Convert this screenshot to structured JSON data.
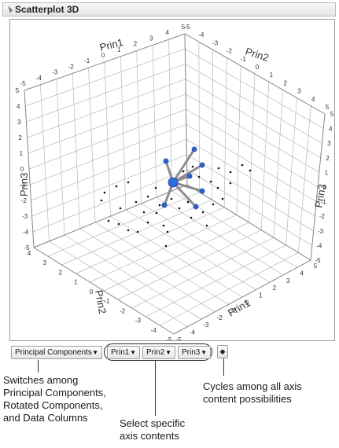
{
  "panel": {
    "title": "Scatterplot 3D"
  },
  "plot": {
    "axis_labels": {
      "prin1_top": "Prin1",
      "prin2_top": "Prin2",
      "prin3_left": "Prin3",
      "prin3_right": "Prin3",
      "prin2_bottom": "Prin2",
      "prin1_bottom": "Prin1"
    },
    "ticks": {
      "top_left_edge": [
        "-5",
        "-4",
        "-3",
        "-2",
        "-1",
        "0",
        "1",
        "2",
        "3",
        "4",
        "5"
      ],
      "top_right_edge": [
        "-5",
        "-4",
        "-3",
        "-2",
        "-1",
        "0",
        "1",
        "2",
        "3",
        "4",
        "5"
      ],
      "left_edge": [
        "5",
        "4",
        "3",
        "2",
        "1",
        "0",
        "-1",
        "-2",
        "-3",
        "-4",
        "-5"
      ],
      "right_edge": [
        "5",
        "4",
        "3",
        "2",
        "1",
        "0",
        "-1",
        "-2",
        "-3",
        "-4",
        "-5"
      ],
      "bottom_right_edge": [
        "-5",
        "-4",
        "-3",
        "-2",
        "-1",
        "0",
        "1",
        "2",
        "3",
        "4",
        "5"
      ],
      "bottom_left_edge": [
        "-5",
        "-4",
        "-3",
        "-2",
        "-1",
        "0",
        "1",
        "2",
        "3",
        "4"
      ]
    }
  },
  "controls": {
    "data_source": "Principal Components",
    "axis1": "Prin1",
    "axis2": "Prin2",
    "axis3": "Prin3",
    "cycle_icon": "diamond-icon"
  },
  "callouts": {
    "switch": [
      "Switches among",
      "Principal Components,",
      "Rotated Components,",
      "and Data Columns"
    ],
    "select": [
      "Select specific",
      "axis contents"
    ],
    "cycle": [
      "Cycles among all axis",
      "content possibilities"
    ]
  }
}
